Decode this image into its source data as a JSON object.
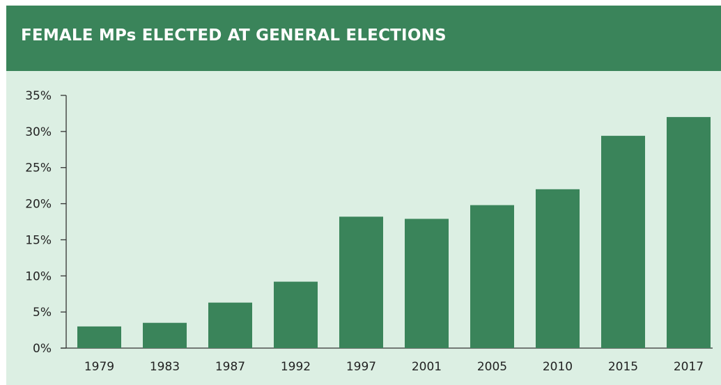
{
  "header": {
    "title": "FEMALE MPs ELECTED AT GENERAL ELECTIONS"
  },
  "colors": {
    "header_bg": "#3a845a",
    "panel_bg": "#dcefe3",
    "bar": "#3a845a",
    "axis": "#333333"
  },
  "chart_data": {
    "type": "bar",
    "title": "FEMALE MPs ELECTED AT GENERAL ELECTIONS",
    "xlabel": "",
    "ylabel": "",
    "categories": [
      "1979",
      "1983",
      "1987",
      "1992",
      "1997",
      "2001",
      "2005",
      "2010",
      "2015",
      "2017"
    ],
    "values": [
      3.0,
      3.5,
      6.3,
      9.2,
      18.2,
      17.9,
      19.8,
      22.0,
      29.4,
      32.0
    ],
    "ylim": [
      0,
      35
    ],
    "yticks": [
      0,
      5,
      10,
      15,
      20,
      25,
      30,
      35
    ],
    "ytick_labels": [
      "0%",
      "5%",
      "10%",
      "15%",
      "20%",
      "25%",
      "30%",
      "35%"
    ],
    "grid": false,
    "legend": "none"
  }
}
